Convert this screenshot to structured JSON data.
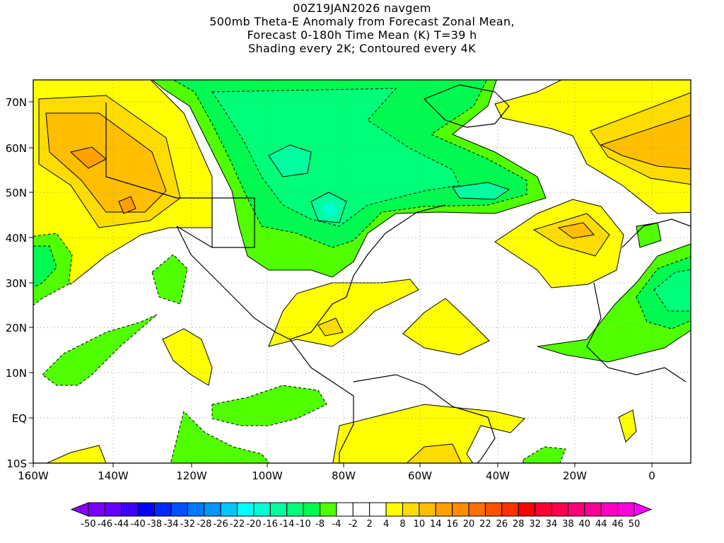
{
  "title_lines": [
    "00Z19JAN2026 navgem",
    "500mb Theta-E Anomaly from Forecast Zonal Mean,",
    "Forecast 0-180h Time Mean (K) T=39 h",
    "Shading every 2K; Contoured every 4K"
  ],
  "lat_labels": [
    "70N",
    "60N",
    "50N",
    "40N",
    "30N",
    "20N",
    "10N",
    "EQ",
    "10S"
  ],
  "lon_labels": [
    "160W",
    "140W",
    "120W",
    "100W",
    "80W",
    "60W",
    "40W",
    "20W",
    "0"
  ],
  "colorbar": {
    "labels": [
      "-50",
      "-46",
      "-44",
      "-40",
      "-38",
      "-34",
      "-32",
      "-28",
      "-26",
      "-22",
      "-20",
      "-16",
      "-14",
      "-10",
      "-8",
      "-4",
      "-2",
      "2",
      "4",
      "8",
      "10",
      "14",
      "16",
      "20",
      "22",
      "26",
      "28",
      "32",
      "34",
      "38",
      "40",
      "44",
      "46",
      "50"
    ],
    "low_arrow_color": "#8c00ff",
    "high_arrow_color": "#ff00ff",
    "colors": [
      "#7800ff",
      "#6400ff",
      "#3c00ff",
      "#0000ff",
      "#0028ff",
      "#0050ff",
      "#0078ff",
      "#0096ff",
      "#00c8ff",
      "#00ffff",
      "#00ffd2",
      "#00ffa0",
      "#00ff78",
      "#00fa50",
      "#50ff00",
      "#ffffff",
      "#ffffff",
      "#ffffff",
      "#ffff00",
      "#ffdc00",
      "#ffbe00",
      "#ffa000",
      "#ff8c00",
      "#ff6e00",
      "#ff5000",
      "#ff3200",
      "#ff0000",
      "#ff0032",
      "#ff0050",
      "#ff0078",
      "#ff0096",
      "#ff00c0",
      "#ff00dc"
    ]
  }
}
